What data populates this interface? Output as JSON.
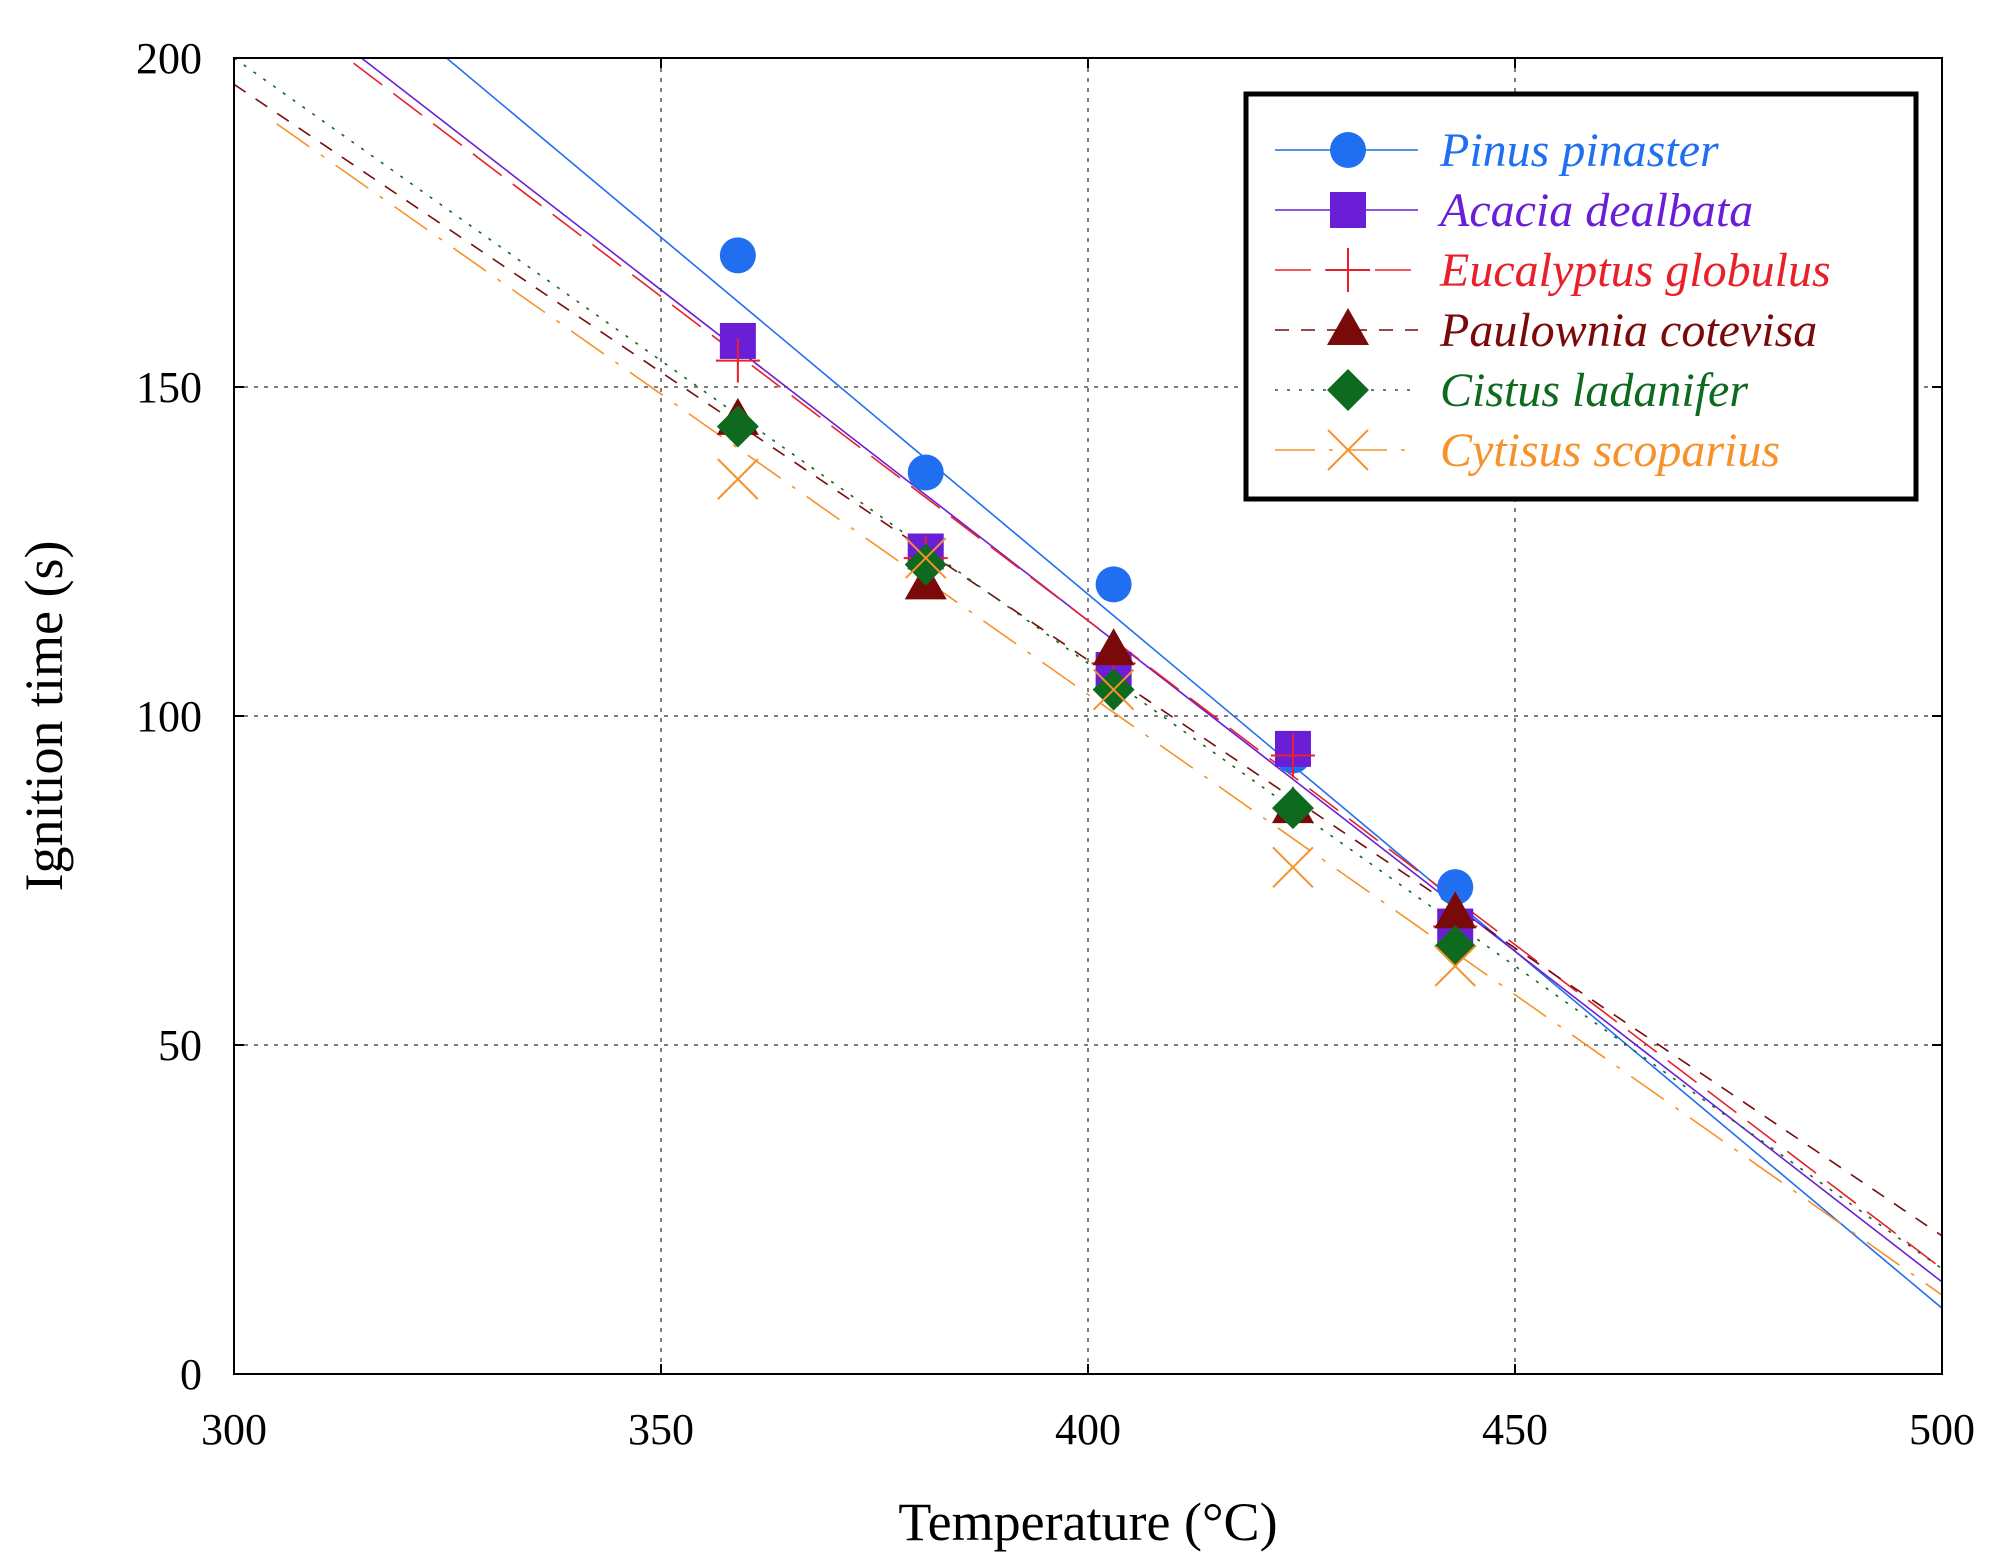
{
  "chart_data": {
    "type": "scatter",
    "title": "",
    "xlabel": "Temperature (°C)",
    "ylabel": "Ignition time (s)",
    "xlim": [
      300,
      500
    ],
    "ylim": [
      0,
      200
    ],
    "xticks": [
      "300",
      "350",
      "400",
      "450",
      "500"
    ],
    "yticks": [
      "0",
      "50",
      "100",
      "150",
      "200"
    ],
    "x_tick_values": [
      300,
      350,
      400,
      450,
      500
    ],
    "y_tick_values": [
      0,
      50,
      100,
      150,
      200
    ],
    "grid": true,
    "legend_position": "top-right",
    "series": [
      {
        "name": "Pinus pinaster",
        "color": "#1f6ff0",
        "marker": "circle",
        "line_style": "solid",
        "x": [
          359,
          381,
          403,
          424,
          443
        ],
        "y": [
          170,
          137,
          120,
          94,
          74
        ],
        "fit_line": {
          "x": [
            300,
            500
          ],
          "y": [
            227,
            10
          ]
        }
      },
      {
        "name": "Acacia dealbata",
        "color": "#6a1fd6",
        "marker": "square",
        "line_style": "solid",
        "x": [
          359,
          381,
          403,
          424,
          443
        ],
        "y": [
          157,
          125,
          107,
          95,
          68
        ],
        "fit_line": {
          "x": [
            300,
            500
          ],
          "y": [
            215,
            14
          ]
        }
      },
      {
        "name": "Eucalyptus globulus",
        "color": "#e8202a",
        "marker": "plus",
        "line_style": "longdash",
        "x": [
          359,
          381,
          403,
          424,
          443
        ],
        "y": [
          154,
          124,
          108,
          94,
          68
        ],
        "fit_line": {
          "x": [
            300,
            500
          ],
          "y": [
            213,
            16
          ]
        }
      },
      {
        "name": "Paulownia cotevisa",
        "color": "#7a0a0a",
        "marker": "triangle",
        "line_style": "dash",
        "x": [
          359,
          381,
          403,
          424,
          443
        ],
        "y": [
          145,
          120,
          110,
          86,
          70
        ],
        "fit_line": {
          "x": [
            300,
            500
          ],
          "y": [
            196,
            21
          ]
        }
      },
      {
        "name": "Cistus ladanifer",
        "color": "#0d6a1e",
        "marker": "diamond",
        "line_style": "dot",
        "x": [
          359,
          381,
          403,
          424,
          443
        ],
        "y": [
          144,
          123,
          104,
          86,
          65
        ],
        "fit_line": {
          "x": [
            300,
            500
          ],
          "y": [
            200,
            16
          ]
        }
      },
      {
        "name": "Cytisus scoparius",
        "color": "#f7922a",
        "marker": "cross",
        "line_style": "dashdot",
        "x": [
          359,
          381,
          403,
          424,
          443
        ],
        "y": [
          136,
          124,
          104,
          77,
          62
        ],
        "fit_line": {
          "x": [
            305,
            500
          ],
          "y": [
            190,
            12
          ]
        }
      }
    ]
  }
}
